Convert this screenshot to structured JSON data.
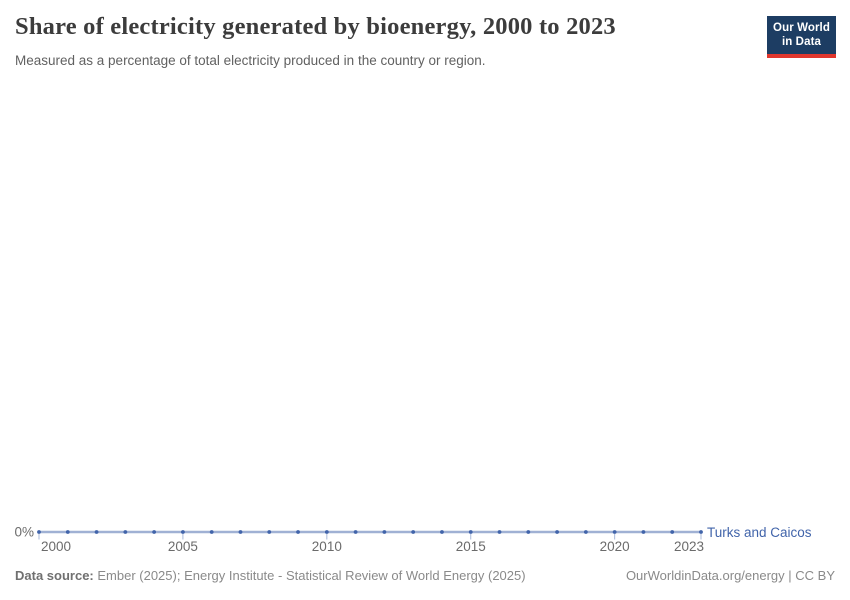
{
  "header": {
    "title": "Share of electricity generated by bioenergy, 2000 to 2023",
    "subtitle": "Measured as a percentage of total electricity produced in the country or region.",
    "logo": {
      "line1": "Our World",
      "line2": "in Data"
    }
  },
  "colors": {
    "series_blue": "#4164aa",
    "axis_text_gray": "#6b6b6b",
    "logo_navy": "#1d3d63",
    "logo_red": "#e0362d"
  },
  "chart_data": {
    "type": "line",
    "title": "Share of electricity generated by bioenergy, 2000 to 2023",
    "unit": "%",
    "grid": false,
    "legend_position": "end-of-line-label",
    "x": [
      2000,
      2001,
      2002,
      2003,
      2004,
      2005,
      2006,
      2007,
      2008,
      2009,
      2010,
      2011,
      2012,
      2013,
      2014,
      2015,
      2016,
      2017,
      2018,
      2019,
      2020,
      2021,
      2022,
      2023
    ],
    "series": [
      {
        "name": "Turks and Caicos",
        "color": "#4164aa",
        "values": [
          0,
          0,
          0,
          0,
          0,
          0,
          0,
          0,
          0,
          0,
          0,
          0,
          0,
          0,
          0,
          0,
          0,
          0,
          0,
          0,
          0,
          0,
          0,
          0
        ]
      }
    ],
    "x_ticks": [
      2000,
      2005,
      2010,
      2015,
      2020,
      2023
    ],
    "x_tick_labels": [
      "2000",
      "2005",
      "2010",
      "2015",
      "2020",
      "2023"
    ],
    "y_ticks": [
      {
        "value": 0,
        "label": "0%"
      }
    ],
    "ylim": [
      0,
      0
    ]
  },
  "footer": {
    "data_source_label": "Data source:",
    "data_source_text": " Ember (2025); Energy Institute - Statistical Review of World Energy (2025)",
    "right_text": "OurWorldinData.org/energy | CC BY"
  }
}
